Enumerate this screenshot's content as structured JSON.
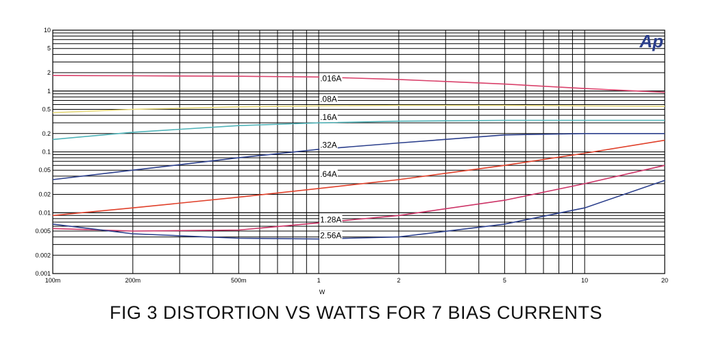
{
  "figure_title": "FIG 3  DISTORTION VS WATTS FOR 7 BIAS CURRENTS",
  "logo": "Ap",
  "chart_data": {
    "type": "line",
    "title": "",
    "xlabel": "W",
    "ylabel": "",
    "x_scale": "log",
    "y_scale": "log",
    "xlim": [
      0.1,
      20
    ],
    "ylim": [
      0.001,
      10
    ],
    "grid": true,
    "x_ticks": [
      {
        "value": 0.1,
        "label": "100m"
      },
      {
        "value": 0.2,
        "label": "200m"
      },
      {
        "value": 0.5,
        "label": "500m"
      },
      {
        "value": 1,
        "label": "1"
      },
      {
        "value": 2,
        "label": "2"
      },
      {
        "value": 5,
        "label": "5"
      },
      {
        "value": 10,
        "label": "10"
      },
      {
        "value": 20,
        "label": "20"
      }
    ],
    "y_ticks": [
      {
        "value": 10,
        "label": "10"
      },
      {
        "value": 5,
        "label": "5"
      },
      {
        "value": 2,
        "label": "2"
      },
      {
        "value": 1,
        "label": "1"
      },
      {
        "value": 0.5,
        "label": "0.5"
      },
      {
        "value": 0.2,
        "label": "0.2"
      },
      {
        "value": 0.1,
        "label": "0.1"
      },
      {
        "value": 0.05,
        "label": "0.05"
      },
      {
        "value": 0.02,
        "label": "0.02"
      },
      {
        "value": 0.01,
        "label": "0.01"
      },
      {
        "value": 0.005,
        "label": "0.005"
      },
      {
        "value": 0.002,
        "label": "0.002"
      },
      {
        "value": 0.001,
        "label": "0.001"
      }
    ],
    "series": [
      {
        "name": ".016A",
        "color": "#d9406a",
        "label_at": [
          1,
          1.6
        ],
        "x": [
          0.1,
          0.2,
          0.5,
          1,
          2,
          5,
          10,
          20
        ],
        "y": [
          1.8,
          1.78,
          1.75,
          1.7,
          1.55,
          1.3,
          1.1,
          0.95
        ]
      },
      {
        "name": ".08A",
        "color": "#e6d878",
        "label_at": [
          1,
          0.74
        ],
        "x": [
          0.1,
          0.2,
          0.5,
          1,
          2,
          5,
          10,
          20
        ],
        "y": [
          0.44,
          0.5,
          0.55,
          0.57,
          0.58,
          0.58,
          0.57,
          0.56
        ]
      },
      {
        "name": ".16A",
        "color": "#4fb3b8",
        "label_at": [
          1,
          0.37
        ],
        "x": [
          0.1,
          0.2,
          0.5,
          1,
          2,
          5,
          10,
          20
        ],
        "y": [
          0.16,
          0.21,
          0.27,
          0.3,
          0.32,
          0.33,
          0.33,
          0.33
        ]
      },
      {
        "name": ".32A",
        "color": "#2b3f8c",
        "label_at": [
          1,
          0.13
        ],
        "x": [
          0.1,
          0.2,
          0.5,
          1,
          2,
          5,
          10,
          20
        ],
        "y": [
          0.035,
          0.05,
          0.08,
          0.11,
          0.14,
          0.19,
          0.2,
          0.2
        ]
      },
      {
        "name": ".64A",
        "color": "#e0402a",
        "label_at": [
          1,
          0.043
        ],
        "x": [
          0.1,
          0.2,
          0.5,
          1,
          2,
          5,
          10,
          20
        ],
        "y": [
          0.009,
          0.012,
          0.018,
          0.025,
          0.035,
          0.06,
          0.095,
          0.155
        ]
      },
      {
        "name": "1.28A",
        "color": "#cc3366",
        "label_at": [
          1,
          0.0077
        ],
        "x": [
          0.1,
          0.2,
          0.5,
          1,
          2,
          5,
          10,
          20
        ],
        "y": [
          0.0055,
          0.005,
          0.0052,
          0.0068,
          0.009,
          0.016,
          0.03,
          0.06
        ]
      },
      {
        "name": "2.56A",
        "color": "#2b3f8c",
        "label_at": [
          1,
          0.0042
        ],
        "x": [
          0.1,
          0.2,
          0.5,
          1,
          2,
          5,
          10,
          20
        ],
        "y": [
          0.0065,
          0.0045,
          0.0038,
          0.0037,
          0.004,
          0.0065,
          0.012,
          0.034
        ]
      }
    ]
  }
}
